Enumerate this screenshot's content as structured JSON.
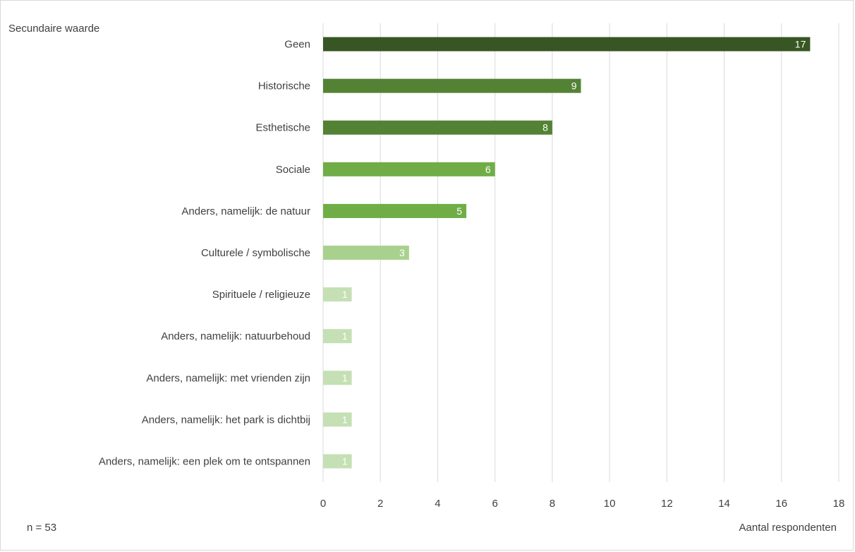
{
  "chart_data": {
    "type": "bar",
    "orientation": "horizontal",
    "title": "",
    "ylabel": "Secundaire waarde",
    "xlabel": "Aantal respondenten",
    "note": "n = 53",
    "xlim": [
      0,
      18
    ],
    "xticks": [
      0,
      2,
      4,
      6,
      8,
      10,
      12,
      14,
      16,
      18
    ],
    "grid": true,
    "legend": "none",
    "categories": [
      "Geen",
      "Historische",
      "Esthetische",
      "Sociale",
      "Anders, namelijk: de natuur",
      "Culturele / symbolische",
      "Spirituele / religieuze",
      "Anders, namelijk: natuurbehoud",
      "Anders, namelijk: met vrienden zijn",
      "Anders, namelijk: het park is dichtbij",
      "Anders, namelijk: een plek om te ontspannen"
    ],
    "values": [
      17,
      9,
      8,
      6,
      5,
      3,
      1,
      1,
      1,
      1,
      1
    ],
    "colors": [
      "#375623",
      "#548235",
      "#548235",
      "#70ad47",
      "#70ad47",
      "#a9d18e",
      "#c5e0b4",
      "#c5e0b4",
      "#c5e0b4",
      "#c5e0b4",
      "#c5e0b4"
    ]
  }
}
